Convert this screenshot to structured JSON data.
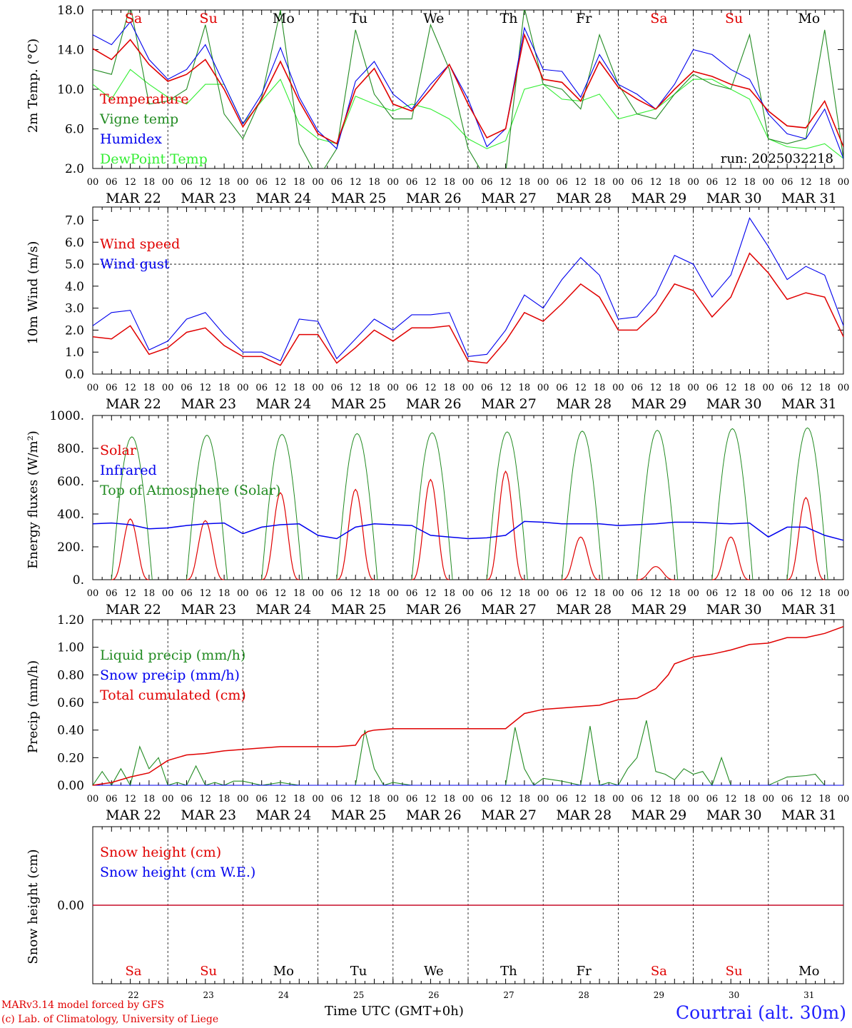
{
  "meteogram": {
    "run_label": "run: 2025032218",
    "time_axis_label": "Time UTC (GMT+0h)",
    "hour_ticks": [
      "00",
      "06",
      "12",
      "18"
    ],
    "dates": [
      "MAR 22",
      "MAR 23",
      "MAR 24",
      "MAR 25",
      "MAR 26",
      "MAR 27",
      "MAR 28",
      "MAR 29",
      "MAR 30",
      "MAR 31"
    ],
    "day_names": [
      "Sa",
      "Su",
      "Mo",
      "Tu",
      "We",
      "Th",
      "Fr",
      "Sa",
      "Su",
      "Mo"
    ],
    "day_numbers": [
      "22",
      "23",
      "24",
      "25",
      "26",
      "27",
      "28",
      "29",
      "30",
      "31"
    ],
    "weekend_color": "#e00000",
    "weekday_color": "#000000",
    "footer": {
      "credit_line1": "MARv3.14 model forced by GFS",
      "credit_line2": "(c) Lab. of Climatology, University of Liege",
      "station": "Courtrai (alt. 30m)"
    }
  },
  "chart_data": [
    {
      "type": "line",
      "ylabel": "2m Temp. (°C)",
      "ylim": [
        2,
        18
      ],
      "yticks": [
        "2.0",
        "6.0",
        "10.0",
        "14.0",
        "18.0"
      ],
      "x_unit": "hours since MAR 22 00 UTC",
      "grid": "daily vertical dashed lines",
      "legend_position": "top-left",
      "series": [
        {
          "name": "Temperature",
          "color": "#e00000",
          "x": [
            0,
            6,
            12,
            18,
            24,
            30,
            36,
            42,
            48,
            54,
            60,
            66,
            72,
            78,
            84,
            90,
            96,
            102,
            108,
            114,
            120,
            126,
            132,
            138,
            144,
            150,
            156,
            162,
            168,
            174,
            180,
            186,
            192,
            198,
            204,
            210,
            216,
            222,
            228,
            234,
            240
          ],
          "values": [
            14.1,
            13.0,
            15.0,
            12.5,
            10.8,
            11.5,
            13.0,
            10.0,
            6.2,
            9.0,
            12.8,
            8.8,
            5.5,
            4.5,
            10.0,
            12.1,
            8.5,
            7.8,
            10.0,
            12.5,
            8.5,
            5.1,
            6.0,
            15.5,
            11.0,
            10.7,
            8.8,
            12.8,
            10.2,
            9.0,
            8.0,
            10.0,
            11.8,
            11.3,
            10.5,
            10.0,
            7.8,
            6.3,
            6.1,
            8.8,
            4.2
          ]
        },
        {
          "name": "Vigne temp",
          "color": "#228b22",
          "x": [
            0,
            6,
            12,
            18,
            24,
            30,
            36,
            42,
            48,
            54,
            60,
            66,
            72,
            78,
            84,
            90,
            96,
            102,
            108,
            114,
            120,
            126,
            132,
            138,
            144,
            150,
            156,
            162,
            168,
            174,
            180,
            186,
            192,
            198,
            204,
            210,
            216,
            222,
            228,
            234,
            240
          ],
          "values": [
            12.0,
            11.5,
            18.5,
            8.5,
            8.8,
            10.0,
            16.5,
            7.5,
            5.0,
            9.2,
            18.0,
            4.5,
            1.0,
            4.0,
            16.0,
            9.5,
            7.0,
            7.0,
            16.5,
            12.0,
            4.0,
            0.8,
            1.5,
            18.2,
            10.5,
            10.0,
            8.0,
            15.5,
            10.5,
            7.5,
            7.0,
            9.5,
            11.5,
            10.5,
            10.0,
            15.5,
            5.0,
            4.5,
            5.0,
            16.0,
            3.0
          ]
        },
        {
          "name": "Humidex",
          "color": "#0000ee",
          "x": [
            0,
            6,
            12,
            18,
            24,
            30,
            36,
            42,
            48,
            54,
            60,
            66,
            72,
            78,
            84,
            90,
            96,
            102,
            108,
            114,
            120,
            126,
            132,
            138,
            144,
            150,
            156,
            162,
            168,
            174,
            180,
            186,
            192,
            198,
            204,
            210,
            216,
            222,
            228,
            234,
            240
          ],
          "values": [
            15.5,
            14.5,
            16.8,
            13.0,
            11.0,
            12.0,
            14.5,
            10.5,
            6.5,
            9.5,
            14.2,
            9.2,
            5.8,
            4.0,
            10.8,
            12.8,
            9.5,
            8.0,
            10.5,
            12.5,
            9.0,
            4.2,
            6.0,
            16.2,
            12.0,
            11.8,
            9.2,
            13.5,
            10.5,
            9.5,
            8.0,
            10.5,
            14.0,
            13.5,
            12.0,
            11.0,
            7.5,
            5.5,
            5.0,
            8.0,
            3.0
          ]
        },
        {
          "name": "DewPoint Temp",
          "color": "#33ee33",
          "x": [
            0,
            6,
            12,
            18,
            24,
            30,
            36,
            42,
            48,
            54,
            60,
            66,
            72,
            78,
            84,
            90,
            96,
            102,
            108,
            114,
            120,
            126,
            132,
            138,
            144,
            150,
            156,
            162,
            168,
            174,
            180,
            186,
            192,
            198,
            204,
            210,
            216,
            222,
            228,
            234,
            240
          ],
          "values": [
            10.5,
            9.0,
            12.0,
            10.5,
            9.2,
            8.5,
            10.5,
            10.5,
            6.5,
            8.8,
            11.0,
            6.5,
            5.0,
            4.5,
            9.3,
            8.5,
            7.8,
            8.5,
            8.0,
            7.0,
            5.0,
            4.0,
            4.8,
            10.0,
            10.5,
            9.0,
            8.8,
            9.5,
            7.0,
            7.5,
            8.0,
            9.5,
            11.0,
            11.0,
            10.0,
            9.0,
            5.0,
            4.2,
            4.0,
            4.5,
            3.0
          ]
        }
      ]
    },
    {
      "type": "line",
      "ylabel": "10m Wind (m/s)",
      "ylim": [
        0,
        7.6
      ],
      "yticks": [
        "0.0",
        "1.0",
        "2.0",
        "3.0",
        "4.0",
        "5.0",
        "6.0",
        "7.0"
      ],
      "reference_line": 5.0,
      "x_unit": "hours since MAR 22 00 UTC",
      "legend_position": "top-left",
      "series": [
        {
          "name": "Wind speed",
          "color": "#e00000",
          "x": [
            0,
            6,
            12,
            18,
            24,
            30,
            36,
            42,
            48,
            54,
            60,
            66,
            72,
            78,
            84,
            90,
            96,
            102,
            108,
            114,
            120,
            126,
            132,
            138,
            144,
            150,
            156,
            162,
            168,
            174,
            180,
            186,
            192,
            198,
            204,
            210,
            216,
            222,
            228,
            234,
            240
          ],
          "values": [
            1.7,
            1.6,
            2.2,
            0.9,
            1.2,
            1.9,
            2.1,
            1.3,
            0.8,
            0.8,
            0.4,
            1.8,
            1.8,
            0.5,
            1.2,
            2.0,
            1.5,
            2.1,
            2.1,
            2.2,
            0.6,
            0.5,
            1.5,
            2.8,
            2.4,
            3.2,
            4.1,
            3.5,
            2.0,
            2.0,
            2.8,
            4.1,
            3.8,
            2.6,
            3.5,
            5.5,
            4.6,
            3.4,
            3.7,
            3.5,
            1.7
          ]
        },
        {
          "name": "Wind gust",
          "color": "#0000ee",
          "x": [
            0,
            6,
            12,
            18,
            24,
            30,
            36,
            42,
            48,
            54,
            60,
            66,
            72,
            78,
            84,
            90,
            96,
            102,
            108,
            114,
            120,
            126,
            132,
            138,
            144,
            150,
            156,
            162,
            168,
            174,
            180,
            186,
            192,
            198,
            204,
            210,
            216,
            222,
            228,
            234,
            240
          ],
          "values": [
            2.2,
            2.8,
            2.9,
            1.1,
            1.5,
            2.5,
            2.8,
            1.8,
            1.0,
            1.0,
            0.6,
            2.5,
            2.4,
            0.7,
            1.6,
            2.5,
            2.0,
            2.7,
            2.7,
            2.8,
            0.8,
            0.9,
            2.0,
            3.6,
            3.0,
            4.3,
            5.3,
            4.5,
            2.5,
            2.6,
            3.6,
            5.4,
            5.0,
            3.5,
            4.5,
            7.1,
            5.8,
            4.3,
            4.9,
            4.5,
            2.2
          ]
        }
      ]
    },
    {
      "type": "line",
      "ylabel": "Energy fluxes (W/m²)",
      "ylim": [
        0,
        1000
      ],
      "yticks": [
        "0.",
        "200.",
        "400.",
        "600.",
        "800.",
        "1000."
      ],
      "x_unit": "hours since MAR 22 00 UTC",
      "legend_position": "top-left",
      "series": [
        {
          "name": "Solar",
          "color": "#e00000",
          "peaks_x": [
            12,
            36,
            60,
            84,
            108,
            132,
            156,
            180,
            204,
            228
          ],
          "peaks": [
            370,
            360,
            530,
            550,
            610,
            660,
            260,
            80,
            260,
            500
          ]
        },
        {
          "name": "Infrared",
          "color": "#0000ee",
          "x": [
            0,
            6,
            12,
            18,
            24,
            30,
            36,
            42,
            48,
            54,
            60,
            66,
            72,
            78,
            84,
            90,
            96,
            102,
            108,
            114,
            120,
            126,
            132,
            138,
            144,
            150,
            156,
            162,
            168,
            174,
            180,
            186,
            192,
            198,
            204,
            210,
            216,
            222,
            228,
            234,
            240
          ],
          "values": [
            340,
            345,
            335,
            310,
            315,
            330,
            340,
            345,
            280,
            320,
            335,
            340,
            270,
            250,
            320,
            340,
            335,
            330,
            270,
            260,
            250,
            255,
            270,
            355,
            350,
            340,
            340,
            340,
            330,
            335,
            340,
            350,
            350,
            345,
            340,
            345,
            260,
            320,
            320,
            270,
            240
          ]
        },
        {
          "name": "Top of Atmosphere (Solar)",
          "color": "#228b22",
          "daily_peaks": [
            870,
            880,
            885,
            890,
            895,
            900,
            905,
            910,
            920,
            925
          ]
        }
      ]
    },
    {
      "type": "line",
      "ylabel": "Precip (mm/h)",
      "ylim": [
        0,
        1.2
      ],
      "yticks": [
        "0.00",
        "0.20",
        "0.40",
        "0.60",
        "0.80",
        "1.00",
        "1.20"
      ],
      "x_unit": "hours since MAR 22 00 UTC",
      "legend_position": "top-left",
      "series": [
        {
          "name": "Liquid precip (mm/h)",
          "color": "#228b22",
          "x": [
            0,
            3,
            6,
            9,
            12,
            15,
            18,
            21,
            24,
            27,
            30,
            33,
            36,
            39,
            42,
            45,
            48,
            54,
            60,
            66,
            72,
            78,
            84,
            87,
            90,
            93,
            96,
            102,
            108,
            114,
            120,
            126,
            132,
            135,
            138,
            141,
            144,
            150,
            156,
            159,
            162,
            165,
            168,
            171,
            174,
            177,
            180,
            183,
            186,
            189,
            192,
            195,
            198,
            201,
            204,
            207,
            210,
            213,
            216,
            222,
            228,
            231,
            234,
            237,
            240
          ],
          "values": [
            0,
            0.1,
            0,
            0.12,
            0,
            0.28,
            0.12,
            0.2,
            0,
            0.02,
            0,
            0.14,
            0,
            0.02,
            0,
            0.03,
            0.03,
            0,
            0.02,
            0,
            0,
            0,
            0,
            0.4,
            0.12,
            0,
            0.02,
            0,
            0,
            0,
            0,
            0,
            0,
            0.42,
            0.12,
            0,
            0.05,
            0.03,
            0,
            0.43,
            0,
            0.02,
            0,
            0.12,
            0.2,
            0.47,
            0.1,
            0.08,
            0.04,
            0.12,
            0.08,
            0.1,
            0,
            0.2,
            0,
            0,
            0,
            0,
            0,
            0.06,
            0.07,
            0.08,
            0,
            0,
            0
          ]
        },
        {
          "name": "Snow precip (mm/h)",
          "color": "#0000ee",
          "x": [
            0,
            240
          ],
          "values": [
            0,
            0
          ]
        },
        {
          "name": "Total cumulated (cm)",
          "color": "#e00000",
          "x": [
            0,
            6,
            12,
            18,
            24,
            30,
            36,
            42,
            48,
            54,
            60,
            66,
            72,
            78,
            84,
            86,
            88,
            90,
            96,
            102,
            108,
            114,
            120,
            126,
            132,
            138,
            144,
            150,
            156,
            162,
            168,
            174,
            180,
            184,
            186,
            192,
            198,
            204,
            210,
            216,
            222,
            228,
            234,
            240
          ],
          "values": [
            0,
            0.02,
            0.06,
            0.09,
            0.18,
            0.22,
            0.23,
            0.25,
            0.26,
            0.27,
            0.28,
            0.28,
            0.28,
            0.28,
            0.29,
            0.36,
            0.39,
            0.4,
            0.41,
            0.41,
            0.41,
            0.41,
            0.41,
            0.41,
            0.41,
            0.52,
            0.55,
            0.56,
            0.57,
            0.58,
            0.62,
            0.63,
            0.7,
            0.8,
            0.88,
            0.93,
            0.95,
            0.98,
            1.02,
            1.03,
            1.07,
            1.07,
            1.1,
            1.15
          ]
        }
      ]
    },
    {
      "type": "line",
      "ylabel": "Snow height (cm)",
      "ylim": [
        -1,
        1
      ],
      "yticks": [
        "0.00"
      ],
      "x_unit": "hours since MAR 22 00 UTC",
      "legend_position": "top-left",
      "series": [
        {
          "name": "Snow height (cm)",
          "color": "#e00000",
          "x": [
            0,
            240
          ],
          "values": [
            0,
            0
          ]
        },
        {
          "name": "Snow height (cm W.E.)",
          "color": "#0000ee",
          "x": [
            0,
            240
          ],
          "values": [
            0,
            0
          ]
        }
      ]
    }
  ]
}
